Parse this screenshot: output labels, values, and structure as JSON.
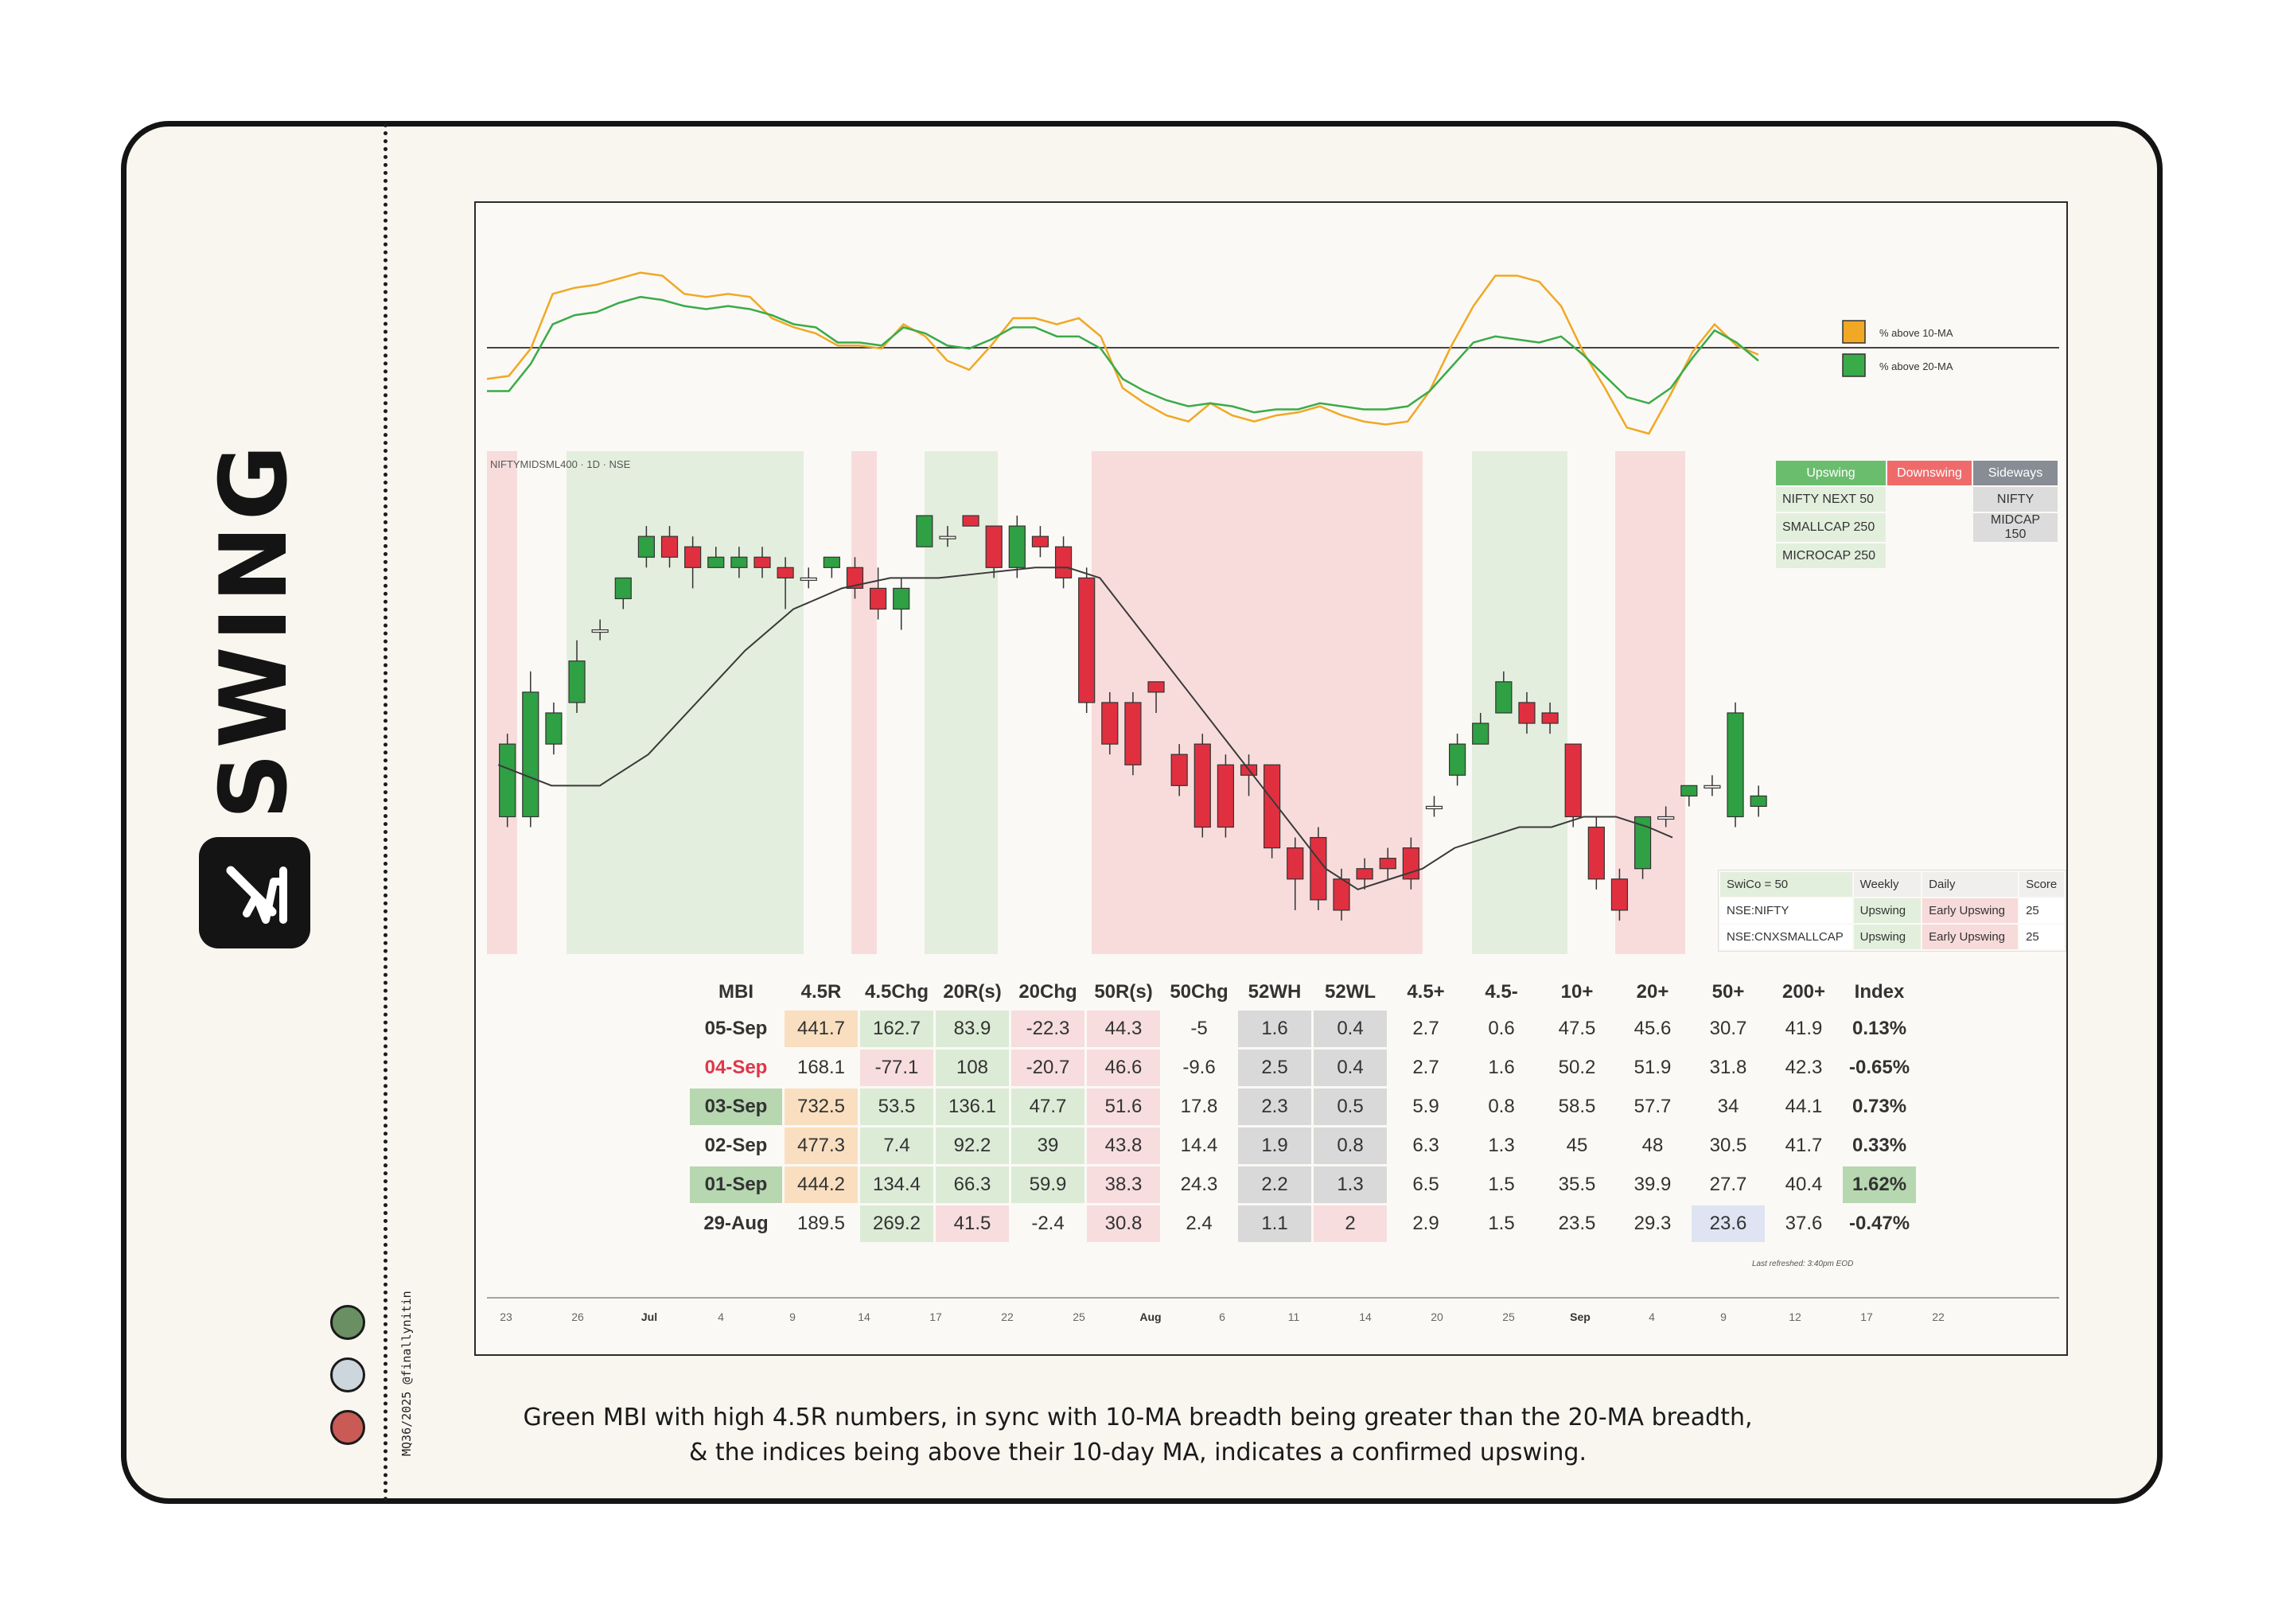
{
  "brand": {
    "title": "SWING",
    "icon": "swing-logo-icon"
  },
  "credit": "MQ36/2025 @finallynitin",
  "status_dots": {
    "colors": [
      "#6a8f63",
      "#cdd5dd",
      "#c95a55"
    ]
  },
  "chart_data": [
    {
      "type": "line",
      "title": "",
      "series": [
        {
          "name": "% above 10-MA",
          "color": "#f0a825",
          "values": [
            38,
            39,
            48,
            66,
            68,
            69,
            71,
            73,
            72,
            66,
            65,
            66,
            65,
            58,
            55,
            53,
            49,
            49,
            48,
            56,
            52,
            44,
            41,
            49,
            58,
            58,
            56,
            58,
            52,
            35,
            30,
            26,
            24,
            30,
            26,
            24,
            26,
            27,
            29,
            26,
            24,
            23,
            24,
            34,
            49,
            62,
            72,
            72,
            70,
            62,
            47,
            35,
            22,
            20,
            33,
            47,
            56,
            49,
            46
          ]
        },
        {
          "name": "% above 20-MA",
          "color": "#3aab49",
          "values": [
            34,
            34,
            43,
            56,
            59,
            60,
            63,
            65,
            64,
            62,
            61,
            62,
            61,
            59,
            56,
            55,
            50,
            50,
            49,
            55,
            53,
            49,
            48,
            51,
            55,
            55,
            52,
            52,
            48,
            38,
            34,
            31,
            29,
            30,
            29,
            27,
            28,
            28,
            30,
            29,
            28,
            28,
            29,
            34,
            42,
            50,
            52,
            51,
            50,
            52,
            46,
            39,
            32,
            30,
            35,
            45,
            54,
            50,
            44
          ]
        }
      ],
      "reference_line": 50
    },
    {
      "type": "candlestick",
      "title": "NIFTYMIDSML400 · 1D · NSE",
      "x_ticks": [
        "23",
        "26",
        "Jul",
        "4",
        "9",
        "14",
        "17",
        "22",
        "25",
        "Aug",
        "6",
        "11",
        "14",
        "20",
        "25",
        "Sep",
        "4",
        "9",
        "12",
        "17",
        "22"
      ]
    }
  ],
  "legend": {
    "ma10": "% above 10-MA",
    "ma20": "% above 20-MA"
  },
  "regime": {
    "headers": [
      "Upswing",
      "Downswing",
      "Sideways"
    ],
    "upswing": [
      "NIFTY NEXT 50",
      "SMALLCAP 250",
      "MICROCAP 250"
    ],
    "sideways": [
      "NIFTY",
      "MIDCAP 150"
    ]
  },
  "swico": {
    "headers": [
      "SwiCo = 50",
      "Weekly",
      "Daily",
      "Score"
    ],
    "rows": [
      [
        "NSE:NIFTY",
        "Upswing",
        "Early Upswing",
        "25"
      ],
      [
        "NSE:CNXSMALLCAP",
        "Upswing",
        "Early Upswing",
        "25"
      ]
    ]
  },
  "mbi": {
    "headers": [
      "MBI",
      "4.5R",
      "4.5Chg",
      "20R(s)",
      "20Chg",
      "50R(s)",
      "50Chg",
      "52WH",
      "52WL",
      "4.5+",
      "4.5-",
      "10+",
      "20+",
      "50+",
      "200+",
      "Index"
    ],
    "rows": [
      [
        "05-Sep",
        "441.7",
        "162.7",
        "83.9",
        "-22.3",
        "44.3",
        "-5",
        "1.6",
        "0.4",
        "2.7",
        "0.6",
        "47.5",
        "45.6",
        "30.7",
        "41.9",
        "0.13%"
      ],
      [
        "04-Sep",
        "168.1",
        "-77.1",
        "108",
        "-20.7",
        "46.6",
        "-9.6",
        "2.5",
        "0.4",
        "2.7",
        "1.6",
        "50.2",
        "51.9",
        "31.8",
        "42.3",
        "-0.65%"
      ],
      [
        "03-Sep",
        "732.5",
        "53.5",
        "136.1",
        "47.7",
        "51.6",
        "17.8",
        "2.3",
        "0.5",
        "5.9",
        "0.8",
        "58.5",
        "57.7",
        "34",
        "44.1",
        "0.73%"
      ],
      [
        "02-Sep",
        "477.3",
        "7.4",
        "92.2",
        "39",
        "43.8",
        "14.4",
        "1.9",
        "0.8",
        "6.3",
        "1.3",
        "45",
        "48",
        "30.5",
        "41.7",
        "0.33%"
      ],
      [
        "01-Sep",
        "444.2",
        "134.4",
        "66.3",
        "59.9",
        "38.3",
        "24.3",
        "2.2",
        "1.3",
        "6.5",
        "1.5",
        "35.5",
        "39.9",
        "27.7",
        "40.4",
        "1.62%"
      ],
      [
        "29-Aug",
        "189.5",
        "269.2",
        "41.5",
        "-2.4",
        "30.8",
        "2.4",
        "1.1",
        "2",
        "2.9",
        "1.5",
        "23.5",
        "29.3",
        "23.6",
        "37.6",
        "-0.47%"
      ]
    ],
    "refreshed": "Last refreshed: 3:40pm EOD"
  },
  "caption": {
    "line1": "Green MBI with high 4.5R numbers, in sync with 10-MA breadth being greater than the 20-MA breadth,",
    "line2": "& the indices being above their 10-day MA, indicates a confirmed upswing."
  }
}
